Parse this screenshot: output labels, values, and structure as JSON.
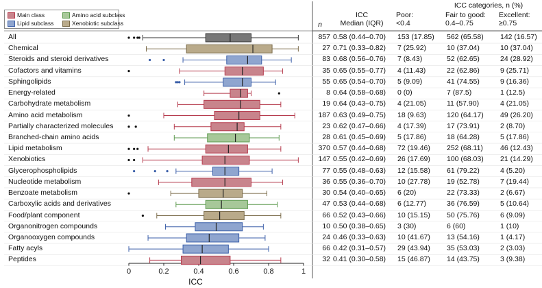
{
  "chart_data": {
    "type": "boxplot",
    "xlabel": "ICC",
    "xlim": [
      0,
      1
    ],
    "xticks": [
      "0",
      "0.2",
      "0.4",
      "0.6",
      "0.8",
      "1"
    ],
    "legend": [
      {
        "label": "Main class",
        "color": "#c8848c"
      },
      {
        "label": "Lipid subclass",
        "color": "#8fa5cf"
      },
      {
        "label": "Amino acid subclass",
        "color": "#a7c899"
      },
      {
        "label": "Xenobiotic subclass",
        "color": "#b9aa8a"
      }
    ],
    "headers": {
      "n": "n",
      "icc_line1": "ICC",
      "icc_line2": "Median (IQR)",
      "categories": "ICC categories, n (%)",
      "poor_line1": "Poor:",
      "poor_line2": "<0.4",
      "fair_line1": "Fair to good:",
      "fair_line2": "0.4–0.75",
      "exc_line1": "Excellent:",
      "exc_line2": "≥0.75"
    },
    "rows": [
      {
        "label": "All",
        "group": "all",
        "n": "857",
        "icc": "0.58 (0.44–0.70)",
        "poor": "153 (17.85)",
        "fair": "562 (65.58)",
        "exc": "142 (16.57)",
        "box": [
          0.08,
          0.44,
          0.58,
          0.7,
          0.97
        ],
        "outliers": [
          0.0,
          0.03,
          0.05,
          0.06
        ]
      },
      {
        "label": "Chemical",
        "group": "xeno",
        "n": "27",
        "icc": "0.71 (0.33–0.82)",
        "poor": "7 (25.92)",
        "fair": "10 (37.04)",
        "exc": "10 (37.04)",
        "box": [
          0.1,
          0.33,
          0.71,
          0.82,
          0.97
        ],
        "outliers": []
      },
      {
        "label": "Steroids and steroid derivatives",
        "group": "lipid",
        "n": "83",
        "icc": "0.68 (0.56–0.76)",
        "poor": "7 (8.43)",
        "fair": "52 (62.65)",
        "exc": "24 (28.92)",
        "box": [
          0.31,
          0.56,
          0.68,
          0.76,
          0.93
        ],
        "outliers": [
          0.12,
          0.2
        ]
      },
      {
        "label": "Cofactors and vitamins",
        "group": "main",
        "n": "35",
        "icc": "0.65 (0.55–0.77)",
        "poor": "4 (11.43)",
        "fair": "22 (62.86)",
        "exc": "9 (25.71)",
        "box": [
          0.29,
          0.55,
          0.65,
          0.77,
          0.88
        ],
        "outliers": [
          0.0
        ]
      },
      {
        "label": "Sphingolipids",
        "group": "lipid",
        "n": "55",
        "icc": "0.65 (0.54–0.70)",
        "poor": "5 (9.09)",
        "fair": "41 (74.55)",
        "exc": "9 (16.36)",
        "box": [
          0.32,
          0.54,
          0.65,
          0.7,
          0.84
        ],
        "outliers": [
          0.27,
          0.28,
          0.29
        ]
      },
      {
        "label": "Energy-related",
        "group": "main",
        "n": "8",
        "icc": "0.64 (0.58–0.68)",
        "poor": "0 (0)",
        "fair": "7 (87.5)",
        "exc": "1 (12.5)",
        "box": [
          0.43,
          0.58,
          0.64,
          0.68,
          0.7
        ],
        "outliers": [
          0.86
        ]
      },
      {
        "label": "Carbohydrate metabolism",
        "group": "main",
        "n": "19",
        "icc": "0.64 (0.43–0.75)",
        "poor": "4 (21.05)",
        "fair": "11 (57.90)",
        "exc": "4 (21.05)",
        "box": [
          0.28,
          0.43,
          0.64,
          0.75,
          0.87
        ],
        "outliers": []
      },
      {
        "label": "Amino acid metabolism",
        "group": "main",
        "n": "187",
        "icc": "0.63 (0.49–0.75)",
        "poor": "18 (9.63)",
        "fair": "120 (64.17)",
        "exc": "49 (26.20)",
        "box": [
          0.2,
          0.49,
          0.63,
          0.75,
          0.95
        ],
        "outliers": [
          0.0
        ]
      },
      {
        "label": "Partially characterized molecules",
        "group": "main",
        "n": "23",
        "icc": "0.62 (0.47–0.66)",
        "poor": "4 (17.39)",
        "fair": "17 (73.91)",
        "exc": "2 (8.70)",
        "box": [
          0.26,
          0.47,
          0.62,
          0.66,
          0.87
        ],
        "outliers": [
          0.0,
          0.04
        ]
      },
      {
        "label": "Branched-chain amino acids",
        "group": "amino",
        "n": "28",
        "icc": "0.61 (0.45–0.69)",
        "poor": "5 (17.86)",
        "fair": "18 (64.28)",
        "exc": "5 (17.86)",
        "box": [
          0.26,
          0.45,
          0.61,
          0.69,
          0.86
        ],
        "outliers": []
      },
      {
        "label": "Lipid metabolism",
        "group": "main",
        "n": "370",
        "icc": "0.57 (0.44–0.68)",
        "poor": "72 (19.46)",
        "fair": "252 (68.11)",
        "exc": "46 (12.43)",
        "box": [
          0.11,
          0.44,
          0.57,
          0.68,
          0.87
        ],
        "outliers": [
          0.0,
          0.03,
          0.05
        ]
      },
      {
        "label": "Xenobiotics",
        "group": "main",
        "n": "147",
        "icc": "0.55 (0.42–0.69)",
        "poor": "26 (17.69)",
        "fair": "100 (68.03)",
        "exc": "21 (14.29)",
        "box": [
          0.08,
          0.42,
          0.55,
          0.69,
          0.97
        ],
        "outliers": [
          0.0,
          0.03
        ]
      },
      {
        "label": "Glycerophospholipids",
        "group": "lipid",
        "n": "77",
        "icc": "0.55 (0.48–0.63)",
        "poor": "12 (15.58)",
        "fair": "61 (79.22)",
        "exc": "4 (5.20)",
        "box": [
          0.27,
          0.48,
          0.55,
          0.63,
          0.82
        ],
        "outliers": [
          0.03,
          0.15,
          0.22
        ]
      },
      {
        "label": "Nucleotide metabolism",
        "group": "main",
        "n": "36",
        "icc": "0.55 (0.36–0.70)",
        "poor": "10 (27.78)",
        "fair": "19 (52.78)",
        "exc": "7 (19.44)",
        "box": [
          0.17,
          0.36,
          0.55,
          0.7,
          0.88
        ],
        "outliers": []
      },
      {
        "label": "Benzoate metabolism",
        "group": "xeno",
        "n": "30",
        "icc": "0.54 (0.40–0.65)",
        "poor": "6 (20)",
        "fair": "22 (73.33)",
        "exc": "2 (6.67)",
        "box": [
          0.24,
          0.4,
          0.54,
          0.65,
          0.79
        ],
        "outliers": [
          0.0
        ]
      },
      {
        "label": "Carboxylic acids and derivatives",
        "group": "amino",
        "n": "47",
        "icc": "0.53 (0.44–0.68)",
        "poor": "6 (12.77)",
        "fair": "36 (76.59)",
        "exc": "5 (10.64)",
        "box": [
          0.27,
          0.44,
          0.53,
          0.68,
          0.85
        ],
        "outliers": []
      },
      {
        "label": "Food/plant component",
        "group": "xeno",
        "n": "66",
        "icc": "0.52 (0.43–0.66)",
        "poor": "10 (15.15)",
        "fair": "50 (75.76)",
        "exc": "6 (9.09)",
        "box": [
          0.16,
          0.43,
          0.52,
          0.66,
          0.87
        ],
        "outliers": [
          0.08
        ]
      },
      {
        "label": "Organonitrogen compounds",
        "group": "lipid",
        "n": "10",
        "icc": "0.50 (0.38–0.65)",
        "poor": "3 (30)",
        "fair": "6 (60)",
        "exc": "1 (10)",
        "box": [
          0.21,
          0.38,
          0.5,
          0.65,
          0.77
        ],
        "outliers": []
      },
      {
        "label": "Organooxygen compounds",
        "group": "lipid",
        "n": "24",
        "icc": "0.46 (0.33–0.63)",
        "poor": "10 (41.67)",
        "fair": "13 (54.16)",
        "exc": "1 (4.17)",
        "box": [
          0.11,
          0.33,
          0.46,
          0.63,
          0.78
        ],
        "outliers": []
      },
      {
        "label": "Fatty acyls",
        "group": "lipid",
        "n": "66",
        "icc": "0.42 (0.31–0.57)",
        "poor": "29 (43.94)",
        "fair": "35 (53.03)",
        "exc": "2 (3.03)",
        "box": [
          0.0,
          0.31,
          0.42,
          0.57,
          0.8
        ],
        "outliers": []
      },
      {
        "label": "Peptides",
        "group": "main",
        "n": "32",
        "icc": "0.41 (0.30–0.58)",
        "poor": "15 (46.87)",
        "fair": "14 (43.75)",
        "exc": "3 (9.38)",
        "box": [
          0.12,
          0.3,
          0.41,
          0.58,
          0.87
        ],
        "outliers": []
      }
    ],
    "colors": {
      "all": {
        "fill": "#777777",
        "stroke": "#333333"
      },
      "main": {
        "fill": "#c8848c",
        "stroke": "#b53a4c"
      },
      "lipid": {
        "fill": "#8fa5cf",
        "stroke": "#3a5ea8"
      },
      "amino": {
        "fill": "#a7c899",
        "stroke": "#5d9a4f"
      },
      "xeno": {
        "fill": "#b9aa8a",
        "stroke": "#7a6a48"
      }
    }
  }
}
